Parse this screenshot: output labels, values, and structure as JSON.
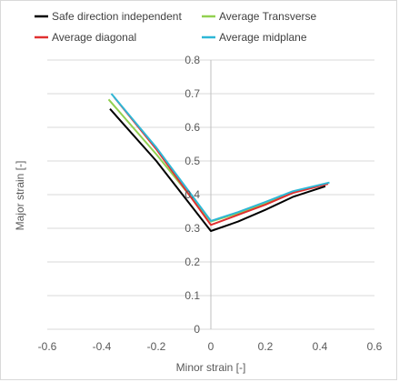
{
  "chart_data": {
    "type": "line",
    "xlabel": "Minor strain [-]",
    "ylabel": "Major strain [-]",
    "xlim": [
      -0.6,
      0.6
    ],
    "ylim": [
      0,
      0.8
    ],
    "x_ticks": [
      "-0.6",
      "-0.4",
      "-0.2",
      "0",
      "0.2",
      "0.4",
      "0.6"
    ],
    "y_ticks": [
      "0",
      "0.1",
      "0.2",
      "0.3",
      "0.4",
      "0.5",
      "0.6",
      "0.7",
      "0.8"
    ],
    "grid": "horizontal",
    "legend_position": "top",
    "series": [
      {
        "name": "Safe direction independent",
        "color": "#000000",
        "points": [
          [
            -0.37,
            0.655
          ],
          [
            -0.2,
            0.5
          ],
          [
            0.0,
            0.292
          ],
          [
            0.1,
            0.32
          ],
          [
            0.2,
            0.355
          ],
          [
            0.3,
            0.393
          ],
          [
            0.42,
            0.425
          ]
        ]
      },
      {
        "name": "Average Transverse",
        "color": "#92d050",
        "points": [
          [
            -0.375,
            0.683
          ],
          [
            -0.2,
            0.52
          ],
          [
            0.0,
            0.32
          ],
          [
            0.1,
            0.345
          ],
          [
            0.2,
            0.373
          ],
          [
            0.3,
            0.407
          ],
          [
            0.43,
            0.435
          ]
        ]
      },
      {
        "name": "Average diagonal",
        "color": "#e03030",
        "points": [
          [
            -0.355,
            0.69
          ],
          [
            -0.2,
            0.535
          ],
          [
            0.0,
            0.31
          ],
          [
            0.1,
            0.34
          ],
          [
            0.2,
            0.37
          ],
          [
            0.3,
            0.405
          ],
          [
            0.43,
            0.432
          ]
        ]
      },
      {
        "name": "Average midplane",
        "color": "#2eb7d6",
        "points": [
          [
            -0.365,
            0.7
          ],
          [
            -0.2,
            0.54
          ],
          [
            0.0,
            0.322
          ],
          [
            0.1,
            0.348
          ],
          [
            0.2,
            0.378
          ],
          [
            0.3,
            0.41
          ],
          [
            0.435,
            0.436
          ]
        ]
      }
    ]
  }
}
